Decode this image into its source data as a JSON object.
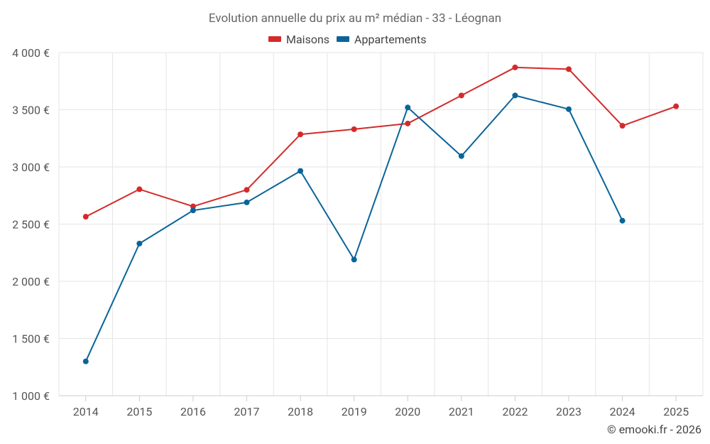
{
  "chart_data": {
    "type": "line",
    "title": "Evolution annuelle du prix au m² médian - 33 - Léognan",
    "categories": [
      "2014",
      "2015",
      "2016",
      "2017",
      "2018",
      "2019",
      "2020",
      "2021",
      "2022",
      "2023",
      "2024",
      "2025"
    ],
    "ylim": [
      1000,
      4000
    ],
    "yticks": [
      1000,
      1500,
      2000,
      2500,
      3000,
      3500,
      4000
    ],
    "ytick_labels": [
      "1 000 €",
      "1 500 €",
      "2 000 €",
      "2 500 €",
      "3 000 €",
      "3 500 €",
      "4 000 €"
    ],
    "series": [
      {
        "name": "Maisons",
        "color": "#d42a2a",
        "values": [
          2565,
          2805,
          2655,
          2800,
          3285,
          3330,
          3380,
          3625,
          3870,
          3855,
          3360,
          3530
        ]
      },
      {
        "name": "Appartements",
        "color": "#0a6499",
        "values": [
          1300,
          2330,
          2620,
          2690,
          2965,
          2190,
          3520,
          3095,
          3625,
          3505,
          2530,
          null
        ]
      }
    ],
    "grid": true,
    "legend": "top-center"
  },
  "credit": "© emooki.fr - 2026"
}
